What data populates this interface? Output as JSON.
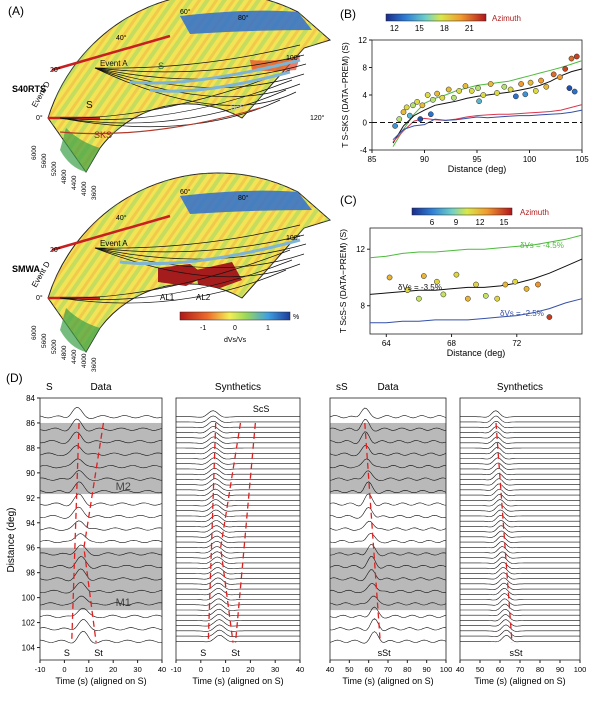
{
  "panel_labels": {
    "a": "(A)",
    "b": "(B)",
    "c": "(C)",
    "d": "(D)"
  },
  "panel_a": {
    "model_top": "S40RTS",
    "model_bottom": "SMWA",
    "event_a": "Event A",
    "event_d": "Event D",
    "phase_s_upper": "S",
    "phase_s_lower": "S",
    "phase_scs": "ScS",
    "phase_sks": "SKS",
    "al1": "AL1",
    "al2": "AL2",
    "angle_ticks": [
      "0°",
      "20°",
      "40°",
      "60°",
      "80°",
      "100°",
      "120°"
    ],
    "radius_ticks": [
      "6000",
      "5600",
      "5200",
      "4800",
      "4400",
      "4000",
      "3600"
    ],
    "colorbar": {
      "ticks": [
        "-1",
        "0",
        "1"
      ],
      "unit": "%",
      "label": "dVs/Vs"
    }
  },
  "chart_data": [
    {
      "type": "scatter",
      "id": "B",
      "ylabel": "T S-SKS (DATA−PREM) (S)",
      "xlabel": "Distance (deg)",
      "xlim": [
        85,
        105
      ],
      "ylim": [
        -4,
        12
      ],
      "xticks": [
        "85",
        "90",
        "95",
        "100",
        "105"
      ],
      "yticks": [
        "-4",
        "0",
        "4",
        "8",
        "12"
      ],
      "colorbar": {
        "title": "Azimuth",
        "ticks": [
          "12",
          "15",
          "18",
          "21"
        ],
        "range": [
          11,
          23
        ]
      },
      "points": [
        {
          "x": 87.2,
          "y": -0.5,
          "az": 14
        },
        {
          "x": 87.6,
          "y": 0.5,
          "az": 17
        },
        {
          "x": 88.0,
          "y": 1.5,
          "az": 19
        },
        {
          "x": 88.3,
          "y": 2.2,
          "az": 18
        },
        {
          "x": 88.6,
          "y": 1.0,
          "az": 15
        },
        {
          "x": 88.9,
          "y": 2.5,
          "az": 17
        },
        {
          "x": 89.3,
          "y": 3.0,
          "az": 18
        },
        {
          "x": 89.8,
          "y": 2.5,
          "az": 19
        },
        {
          "x": 90.3,
          "y": 4.0,
          "az": 18
        },
        {
          "x": 90.8,
          "y": 3.3,
          "az": 17
        },
        {
          "x": 91.2,
          "y": 4.2,
          "az": 19
        },
        {
          "x": 91.7,
          "y": 3.6,
          "az": 18
        },
        {
          "x": 92.3,
          "y": 4.8,
          "az": 19
        },
        {
          "x": 92.8,
          "y": 3.6,
          "az": 17
        },
        {
          "x": 93.3,
          "y": 4.6,
          "az": 18
        },
        {
          "x": 93.9,
          "y": 5.3,
          "az": 19
        },
        {
          "x": 94.5,
          "y": 4.6,
          "az": 18
        },
        {
          "x": 95.1,
          "y": 5.0,
          "az": 17
        },
        {
          "x": 95.6,
          "y": 4.0,
          "az": 18
        },
        {
          "x": 96.3,
          "y": 5.6,
          "az": 19
        },
        {
          "x": 96.9,
          "y": 4.3,
          "az": 18
        },
        {
          "x": 97.6,
          "y": 5.2,
          "az": 17
        },
        {
          "x": 98.2,
          "y": 4.8,
          "az": 18
        },
        {
          "x": 98.7,
          "y": 3.8,
          "az": 13
        },
        {
          "x": 99.2,
          "y": 5.6,
          "az": 20
        },
        {
          "x": 99.6,
          "y": 4.1,
          "az": 14
        },
        {
          "x": 100.1,
          "y": 5.8,
          "az": 19
        },
        {
          "x": 100.6,
          "y": 4.6,
          "az": 18
        },
        {
          "x": 101.1,
          "y": 6.1,
          "az": 20
        },
        {
          "x": 101.6,
          "y": 5.2,
          "az": 19
        },
        {
          "x": 102.3,
          "y": 7.0,
          "az": 21
        },
        {
          "x": 102.9,
          "y": 6.6,
          "az": 20
        },
        {
          "x": 103.4,
          "y": 7.8,
          "az": 22
        },
        {
          "x": 104.0,
          "y": 9.3,
          "az": 21
        },
        {
          "x": 104.5,
          "y": 9.6,
          "az": 22
        },
        {
          "x": 103.8,
          "y": 5.0,
          "az": 12
        },
        {
          "x": 104.3,
          "y": 4.5,
          "az": 13
        },
        {
          "x": 89.6,
          "y": 0.5,
          "az": 12
        },
        {
          "x": 90.6,
          "y": 1.2,
          "az": 13
        },
        {
          "x": 95.2,
          "y": 3.1,
          "az": 15
        }
      ],
      "series": [
        {
          "name": "green",
          "color": "#4dbb3c",
          "x": [
            87,
            88,
            89,
            90,
            91,
            92,
            93,
            94,
            95,
            96,
            97,
            98,
            99,
            100,
            101,
            102,
            103,
            104,
            105
          ],
          "y": [
            -3.5,
            -1.0,
            1.2,
            2.8,
            3.5,
            4.0,
            4.6,
            5.0,
            5.4,
            5.6,
            5.8,
            6.0,
            6.4,
            6.8,
            7.2,
            7.6,
            8.0,
            8.5,
            9.0
          ]
        },
        {
          "name": "black",
          "color": "#111111",
          "x": [
            87,
            88,
            89,
            90,
            91,
            92,
            93,
            94,
            95,
            96,
            97,
            98,
            99,
            100,
            101,
            102,
            103,
            104,
            105
          ],
          "y": [
            -3.0,
            -0.5,
            1.0,
            1.8,
            2.5,
            2.8,
            3.1,
            3.5,
            3.8,
            4.0,
            4.2,
            4.4,
            4.7,
            5.0,
            5.4,
            6.0,
            6.8,
            7.4,
            7.8
          ]
        },
        {
          "name": "red",
          "color": "#d9364f",
          "x": [
            87,
            88,
            89,
            90,
            91,
            92,
            93,
            94,
            95,
            96,
            97,
            98,
            99,
            100,
            101,
            102,
            103,
            104,
            105
          ],
          "y": [
            -2.8,
            -1.2,
            0.2,
            0.6,
            0.4,
            0.3,
            0.5,
            0.8,
            1.0,
            1.1,
            1.2,
            1.2,
            1.3,
            1.4,
            1.5,
            1.6,
            1.8,
            2.2,
            2.6
          ]
        },
        {
          "name": "blue",
          "color": "#3550a8",
          "x": [
            87,
            88,
            89,
            90,
            91,
            92,
            93,
            94,
            95,
            96,
            97,
            98,
            99,
            100,
            101,
            102,
            103,
            104,
            105
          ],
          "y": [
            -2.5,
            -1.0,
            -0.5,
            -0.3,
            0.5,
            0.3,
            0.4,
            0.6,
            0.8,
            0.7,
            0.8,
            0.9,
            1.0,
            1.0,
            1.1,
            1.2,
            1.3,
            1.5,
            1.8
          ]
        },
        {
          "name": "zero",
          "color": "#111111",
          "dashed": true,
          "x": [
            85,
            105
          ],
          "y": [
            0,
            0
          ]
        }
      ]
    },
    {
      "type": "scatter",
      "id": "C",
      "ylabel": "T ScS-S (DATA−PREM) (S)",
      "xlabel": "Distance (deg)",
      "xlim": [
        63,
        76
      ],
      "ylim": [
        6,
        13.5
      ],
      "xticks": [
        "64",
        "68",
        "72"
      ],
      "yticks": [
        "8",
        "12"
      ],
      "colorbar": {
        "title": "Azimuth",
        "ticks": [
          "6",
          "9",
          "12",
          "15"
        ],
        "range": [
          3.5,
          16
        ]
      },
      "annotations": {
        "green": "δVs = -4.5%",
        "black": "δVs = -3.5%",
        "blue": "δVs = -2.5%"
      },
      "points": [
        {
          "x": 64.2,
          "y": 10.0,
          "az": 12
        },
        {
          "x": 65.3,
          "y": 9.1,
          "az": 11
        },
        {
          "x": 66.0,
          "y": 8.5,
          "az": 10
        },
        {
          "x": 66.3,
          "y": 10.1,
          "az": 12
        },
        {
          "x": 67.1,
          "y": 9.7,
          "az": 11
        },
        {
          "x": 67.5,
          "y": 8.8,
          "az": 10
        },
        {
          "x": 68.3,
          "y": 10.2,
          "az": 11
        },
        {
          "x": 69.0,
          "y": 8.5,
          "az": 12
        },
        {
          "x": 69.5,
          "y": 9.5,
          "az": 11
        },
        {
          "x": 70.1,
          "y": 8.7,
          "az": 10
        },
        {
          "x": 70.8,
          "y": 8.5,
          "az": 11
        },
        {
          "x": 71.3,
          "y": 9.5,
          "az": 12
        },
        {
          "x": 71.9,
          "y": 9.7,
          "az": 11
        },
        {
          "x": 72.6,
          "y": 9.2,
          "az": 12
        },
        {
          "x": 73.3,
          "y": 9.5,
          "az": 13
        },
        {
          "x": 74.0,
          "y": 7.2,
          "az": 15
        }
      ],
      "series": [
        {
          "name": "green",
          "color": "#4dbb3c",
          "x": [
            63,
            64,
            65,
            66,
            67,
            68,
            69,
            70,
            71,
            72,
            73,
            74,
            75,
            76
          ],
          "y": [
            11.4,
            11.5,
            11.7,
            11.8,
            11.8,
            11.9,
            12.0,
            12.0,
            12.1,
            12.2,
            12.3,
            12.5,
            12.7,
            13.0
          ]
        },
        {
          "name": "black",
          "color": "#111111",
          "x": [
            63,
            64,
            65,
            66,
            67,
            68,
            69,
            70,
            71,
            72,
            73,
            74,
            75,
            76
          ],
          "y": [
            8.8,
            8.9,
            9.0,
            9.1,
            9.1,
            9.2,
            9.3,
            9.3,
            9.4,
            9.6,
            9.9,
            10.3,
            10.8,
            11.3
          ]
        },
        {
          "name": "blue",
          "color": "#3550a8",
          "x": [
            63,
            64,
            65,
            66,
            67,
            68,
            69,
            70,
            71,
            72,
            73,
            74,
            75,
            76
          ],
          "y": [
            6.8,
            6.8,
            6.9,
            6.9,
            7.0,
            7.0,
            7.0,
            7.1,
            7.2,
            7.3,
            7.5,
            7.8,
            8.2,
            8.5
          ]
        }
      ]
    }
  ],
  "panel_d": {
    "ylabel": "Distance (deg)",
    "yticks": [
      "84",
      "86",
      "88",
      "90",
      "92",
      "94",
      "96",
      "98",
      "100",
      "102",
      "104"
    ],
    "ylim": [
      84,
      105
    ],
    "subpanels": [
      {
        "id": "s-data",
        "title": "Data",
        "phase": "S",
        "xticks": [
          "-10",
          "0",
          "10",
          "20",
          "30",
          "40"
        ],
        "xlim": [
          -10,
          40
        ],
        "xlabel": "Time (s) (aligned on S)",
        "bottom_labels": [
          "S",
          "St"
        ],
        "top_label": "",
        "boxes": [
          {
            "label": "M2"
          },
          {
            "label": "M1"
          }
        ]
      },
      {
        "id": "s-syn",
        "title": "Synthetics",
        "phase": "",
        "xticks": [
          "-10",
          "0",
          "10",
          "20",
          "30",
          "40"
        ],
        "xlim": [
          -10,
          40
        ],
        "xlabel": "Time (s) (aligned on S)",
        "bottom_labels": [
          "S",
          "St"
        ],
        "top_label": "ScS",
        "boxes": []
      },
      {
        "id": "ss-data",
        "title": "Data",
        "phase": "sS",
        "xticks": [
          "40",
          "50",
          "60",
          "70",
          "80",
          "90",
          "100"
        ],
        "xlim": [
          40,
          100
        ],
        "xlabel": "Time (s) (aligned on S)",
        "bottom_labels": [
          "sSt"
        ],
        "top_label": "",
        "boxes": [
          {
            "label": ""
          },
          {
            "label": ""
          }
        ]
      },
      {
        "id": "ss-syn",
        "title": "Synthetics",
        "phase": "",
        "xticks": [
          "40",
          "50",
          "60",
          "70",
          "80",
          "90",
          "100"
        ],
        "xlim": [
          40,
          100
        ],
        "xlabel": "Time (s) (aligned on S)",
        "bottom_labels": [
          "sSt"
        ],
        "top_label": "",
        "boxes": []
      }
    ]
  }
}
